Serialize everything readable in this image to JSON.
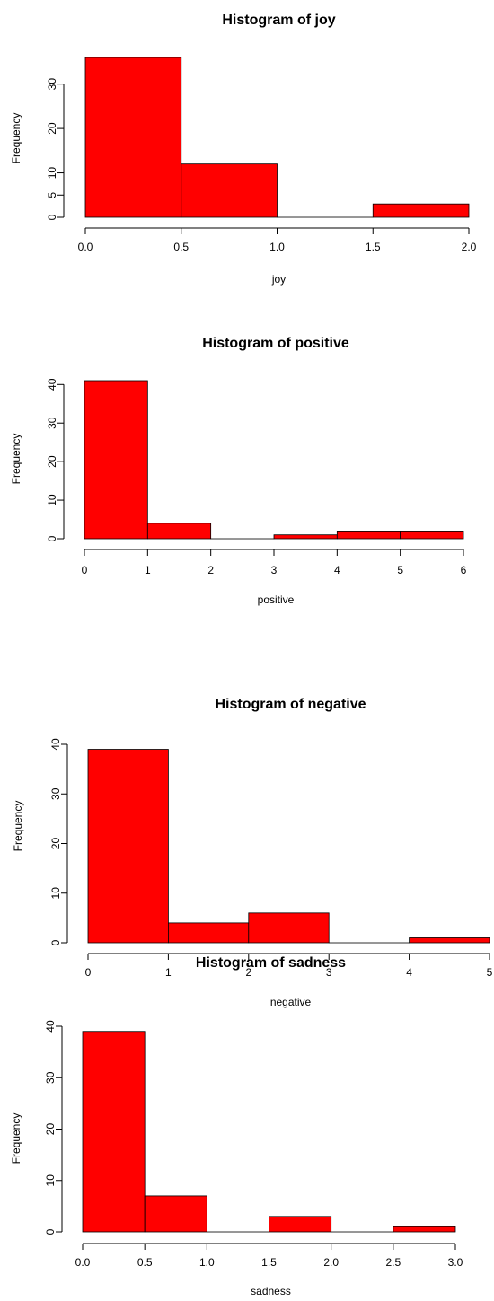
{
  "chart_data": [
    {
      "type": "bar",
      "title": "Histogram of joy",
      "xlabel": "joy",
      "ylabel": "Frequency",
      "bin_edges": [
        0,
        0.5,
        1,
        1.5,
        2
      ],
      "values": [
        36,
        12,
        0,
        3
      ],
      "x_ticks": [
        "0.0",
        "0.5",
        "1.0",
        "1.5",
        "2.0"
      ],
      "y_ticks": [
        "0",
        "5",
        "10",
        "20",
        "30"
      ],
      "xlim": [
        0,
        2
      ],
      "ylim": [
        0,
        36
      ],
      "bar_color": "#ff0000",
      "grid": false
    },
    {
      "type": "bar",
      "title": "Histogram of positive",
      "xlabel": "positive",
      "ylabel": "Frequency",
      "bin_edges": [
        0,
        1,
        2,
        3,
        4,
        5,
        6
      ],
      "values": [
        41,
        4,
        0,
        1,
        2,
        2
      ],
      "x_ticks": [
        "0",
        "1",
        "2",
        "3",
        "4",
        "5",
        "6"
      ],
      "y_ticks": [
        "0",
        "10",
        "20",
        "30",
        "40"
      ],
      "xlim": [
        0,
        6
      ],
      "ylim": [
        0,
        41
      ],
      "bar_color": "#ff0000",
      "grid": false
    },
    {
      "type": "bar",
      "title": "Histogram of negative",
      "xlabel": "negative",
      "ylabel": "Frequency",
      "bin_edges": [
        0,
        1,
        2,
        3,
        4,
        5
      ],
      "values": [
        39,
        4,
        6,
        0,
        1
      ],
      "x_ticks": [
        "0",
        "1",
        "2",
        "3",
        "4",
        "5"
      ],
      "y_ticks": [
        "0",
        "10",
        "20",
        "30",
        "40"
      ],
      "xlim": [
        0,
        5
      ],
      "ylim": [
        0,
        40
      ],
      "bar_color": "#ff0000",
      "grid": false
    },
    {
      "type": "bar",
      "title": "Histogram of sadness",
      "xlabel": "sadness",
      "ylabel": "Frequency",
      "bin_edges": [
        0,
        0.5,
        1,
        1.5,
        2,
        2.5,
        3
      ],
      "values": [
        39,
        7,
        0,
        3,
        0,
        1
      ],
      "x_ticks": [
        "0.0",
        "0.5",
        "1.0",
        "1.5",
        "2.0",
        "2.5",
        "3.0"
      ],
      "y_ticks": [
        "0",
        "10",
        "20",
        "30",
        "40"
      ],
      "xlim": [
        0,
        3
      ],
      "ylim": [
        0,
        40
      ],
      "bar_color": "#ff0000",
      "grid": false
    }
  ]
}
